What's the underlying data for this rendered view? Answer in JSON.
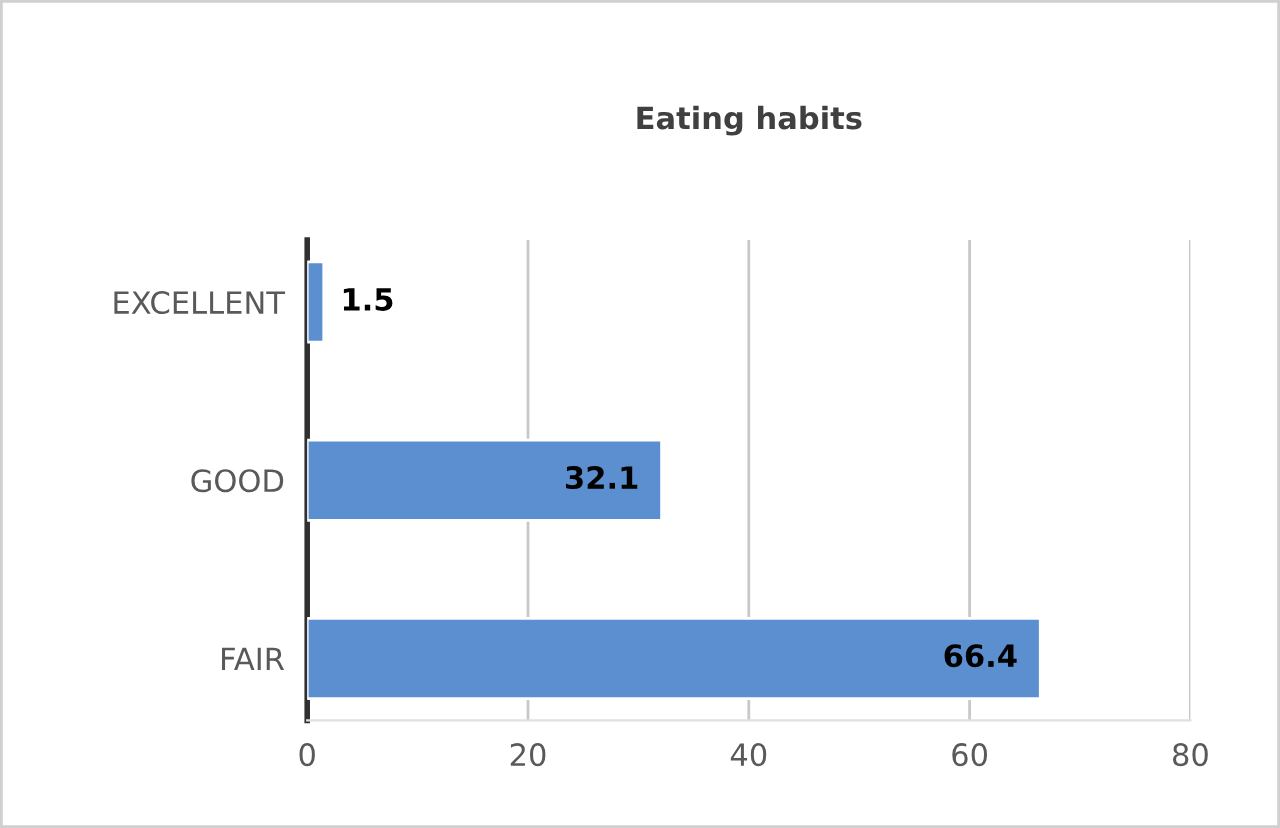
{
  "chart_data": {
    "type": "bar",
    "orientation": "horizontal",
    "title": "Eating habits",
    "categories": [
      "EXCELLENT",
      "GOOD",
      "FAIR"
    ],
    "values": [
      1.5,
      32.1,
      66.4
    ],
    "color": "#5b8fcf",
    "xlim": [
      0,
      80
    ],
    "xticks": [
      0,
      20,
      40,
      60,
      80
    ],
    "grid": "x",
    "data_labels": true
  }
}
